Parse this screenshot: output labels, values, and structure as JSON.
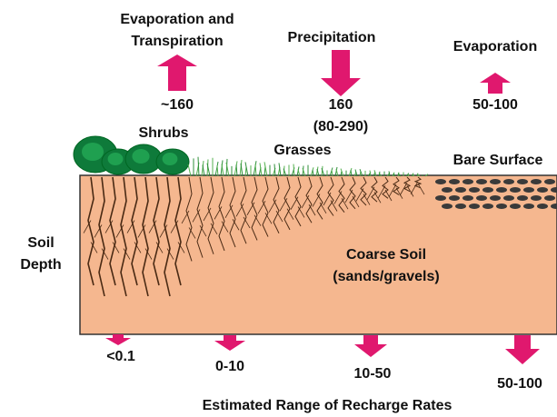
{
  "top_fluxes": [
    {
      "label": [
        "Evaporation and",
        "Transpiration"
      ],
      "rate": [
        "~160"
      ]
    },
    {
      "label": [
        "Precipitation"
      ],
      "rate": [
        "160",
        "(80-290)"
      ]
    },
    {
      "label": [
        "Evaporation"
      ],
      "rate": [
        "50-100"
      ]
    }
  ],
  "surface_labels": [
    "Shrubs",
    "Grasses",
    "Bare Surface"
  ],
  "depth_label": [
    "Soil",
    "Depth"
  ],
  "soil_label": [
    "Coarse Soil",
    "(sands/gravels)"
  ],
  "recharge_rates": [
    "<0.1",
    "0-10",
    "10-50",
    "50-100"
  ],
  "footer": "Estimated Range of Recharge Rates"
}
